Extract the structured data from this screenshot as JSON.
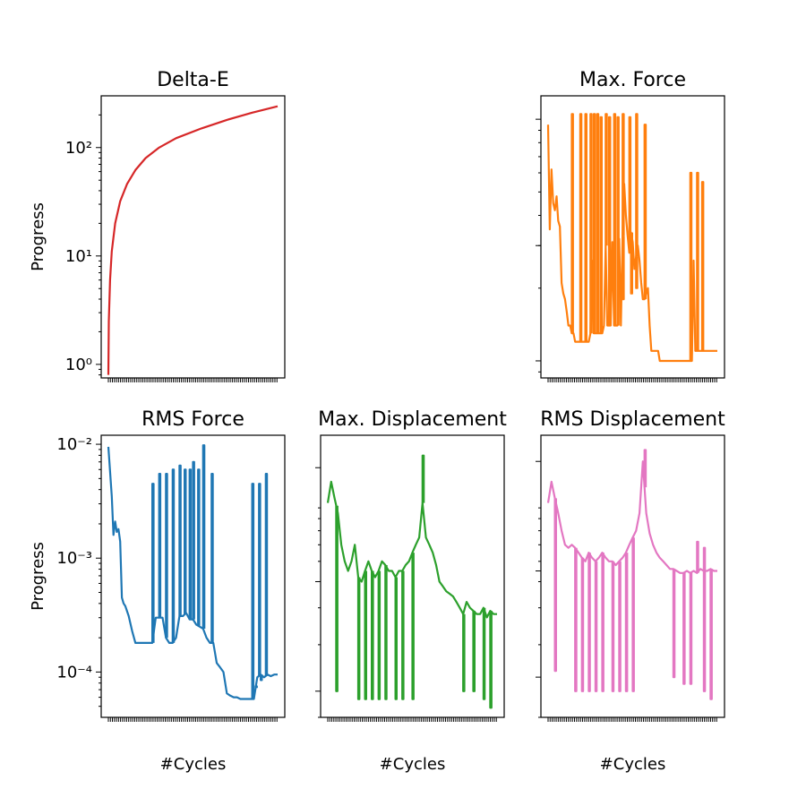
{
  "chart_data": [
    {
      "type": "line",
      "title": "Delta-E",
      "ylabel": "Progress",
      "xlabel": "",
      "yscale": "log",
      "ylim": [
        0.75,
        300
      ],
      "ytick_values": [
        1,
        10,
        100
      ],
      "ytick_labels": [
        "10⁰",
        "10¹",
        "10²"
      ],
      "color": "#d62728",
      "x": [
        0,
        0.25,
        1,
        2,
        4,
        7,
        11,
        16,
        22,
        30,
        40,
        55,
        70,
        85,
        100
      ],
      "y": [
        0.8,
        2.5,
        6,
        11,
        20,
        32,
        46,
        62,
        80,
        100,
        122,
        150,
        180,
        210,
        240
      ]
    },
    {
      "type": "line",
      "title": "Max. Force",
      "ylabel": "",
      "xlabel": "",
      "yscale": "log",
      "ylim": [
        0.00085,
        0.0125
      ],
      "ytick_values": [
        0.001,
        0.003,
        0.01
      ],
      "ytick_labels": [
        "",
        "",
        ""
      ],
      "color": "#ff7f0e",
      "x": [
        0,
        1,
        2,
        3,
        4,
        5,
        6,
        7,
        8,
        9,
        10,
        11,
        12,
        13,
        14,
        15,
        16,
        17,
        18,
        19,
        20,
        21,
        22,
        23,
        24,
        25,
        26,
        27,
        28,
        29,
        30,
        31,
        32,
        33,
        34,
        35,
        36,
        37,
        38,
        39,
        40,
        41,
        42,
        43,
        44,
        45,
        46,
        47,
        48,
        49,
        50,
        51,
        52,
        53,
        54,
        55,
        56,
        57,
        58,
        59,
        60,
        61,
        62,
        63,
        64,
        65,
        66,
        67,
        68,
        69,
        70,
        71,
        72,
        73,
        74,
        75,
        76,
        77,
        78,
        79,
        80,
        81,
        82,
        83,
        84,
        85,
        86,
        87,
        88,
        89,
        90,
        91,
        92,
        93,
        94,
        95,
        96,
        97,
        98,
        99,
        100
      ],
      "y": [
        0.0095,
        0.0035,
        0.0062,
        0.0045,
        0.0042,
        0.0048,
        0.0038,
        0.0036,
        0.0021,
        0.0019,
        0.0018,
        0.0016,
        0.0014,
        0.0014,
        0.0013,
        0.0013,
        0.0012,
        0.0012,
        0.0012,
        0.0012,
        0.0012,
        0.0012,
        0.0012,
        0.0012,
        0.0012,
        0.0013,
        0.0026,
        0.0013,
        0.0013,
        0.0013,
        0.0013,
        0.0013,
        0.0013,
        0.0014,
        0.003,
        0.0014,
        0.0014,
        0.0014,
        0.0031,
        0.0014,
        0.0014,
        0.0014,
        0.0032,
        0.0014,
        0.0033,
        0.0054,
        0.004,
        0.0033,
        0.0028,
        0.0034,
        0.0031,
        0.0024,
        0.0027,
        0.003,
        0.0026,
        0.0021,
        0.0018,
        0.0018,
        0.0019,
        0.002,
        0.0014,
        0.0011,
        0.0011,
        0.0011,
        0.0011,
        0.0011,
        0.001,
        0.001,
        0.001,
        0.001,
        0.001,
        0.001,
        0.001,
        0.001,
        0.001,
        0.001,
        0.001,
        0.001,
        0.001,
        0.001,
        0.001,
        0.001,
        0.001,
        0.001,
        0.001,
        0.001,
        0.0026,
        0.0011,
        0.0011,
        0.0011,
        0.0011,
        0.0011,
        0.0011,
        0.0011,
        0.0011,
        0.0011,
        0.0011,
        0.0011,
        0.0011,
        0.0011,
        0.0011
      ],
      "spikes": [
        [
          14,
          0.0105
        ],
        [
          19,
          0.0105
        ],
        [
          22,
          0.0105
        ],
        [
          25,
          0.0105
        ],
        [
          27,
          0.0105
        ],
        [
          29,
          0.0105
        ],
        [
          31,
          0.0102
        ],
        [
          34,
          0.0105
        ],
        [
          36,
          0.0102
        ],
        [
          39,
          0.0105
        ],
        [
          41,
          0.0102
        ],
        [
          44,
          0.0105
        ],
        [
          48,
          0.0102
        ],
        [
          52,
          0.0105
        ],
        [
          57,
          0.0095
        ],
        [
          84,
          0.006
        ],
        [
          88,
          0.006
        ],
        [
          91,
          0.0055
        ]
      ],
      "dips": [
        [
          44,
          0.0018
        ],
        [
          49,
          0.0019
        ],
        [
          52,
          0.002
        ]
      ]
    },
    {
      "type": "line",
      "title": "RMS Force",
      "ylabel": "Progress",
      "xlabel": "#Cycles",
      "yscale": "log",
      "ylim": [
        4e-05,
        0.012
      ],
      "ytick_values": [
        0.0001,
        0.001,
        0.01
      ],
      "ytick_labels": [
        "10⁻⁴",
        "10⁻³",
        "10⁻²"
      ],
      "color": "#1f77b4",
      "x": [
        0,
        2,
        3,
        4,
        5,
        6,
        7,
        8,
        9,
        10,
        12,
        14,
        16,
        18,
        20,
        22,
        24,
        26,
        28,
        30,
        32,
        34,
        36,
        38,
        40,
        42,
        44,
        46,
        48,
        50,
        52,
        54,
        56,
        58,
        60,
        62,
        64,
        66,
        68,
        70,
        72,
        74,
        76,
        78,
        80,
        82,
        84,
        86,
        88,
        90,
        92,
        94,
        96,
        98,
        100
      ],
      "y": [
        0.0095,
        0.0035,
        0.0016,
        0.0021,
        0.0017,
        0.0018,
        0.0014,
        0.00045,
        0.0004,
        0.00038,
        0.00031,
        0.00023,
        0.00018,
        0.00018,
        0.00018,
        0.00018,
        0.00018,
        0.00018,
        0.0003,
        0.0003,
        0.0003,
        0.0002,
        0.00018,
        0.00018,
        0.0002,
        0.00031,
        0.00031,
        0.00033,
        0.00029,
        0.00029,
        0.00026,
        0.00025,
        0.00024,
        0.0002,
        0.00018,
        0.00018,
        0.00012,
        0.00011,
        0.0001,
        6.5e-05,
        6.2e-05,
        6e-05,
        6e-05,
        5.8e-05,
        5.8e-05,
        5.8e-05,
        5.8e-05,
        5.8e-05,
        9e-05,
        9.5e-05,
        9e-05,
        9.5e-05,
        9.2e-05,
        9.5e-05,
        9.5e-05
      ],
      "spikes": [
        [
          26,
          0.0045
        ],
        [
          30,
          0.0055
        ],
        [
          34,
          0.0055
        ],
        [
          38,
          0.006
        ],
        [
          42,
          0.0065
        ],
        [
          45,
          0.006
        ],
        [
          48,
          0.006
        ],
        [
          50,
          0.007
        ],
        [
          53,
          0.006
        ],
        [
          56,
          0.0098
        ],
        [
          61,
          0.0055
        ],
        [
          85,
          0.0045
        ],
        [
          89,
          0.0045
        ],
        [
          93,
          0.0055
        ]
      ],
      "dips": [
        [
          87,
          7.5e-05
        ],
        [
          90,
          8.5e-05
        ]
      ]
    },
    {
      "type": "line",
      "title": "Max. Displacement",
      "ylabel": "",
      "xlabel": "#Cycles",
      "yscale": "log",
      "ylim": [
        0.0009,
        0.02
      ],
      "ytick_values": [
        0.0012,
        0.004,
        0.014
      ],
      "ytick_labels": [
        "",
        "",
        ""
      ],
      "color": "#2ca02c",
      "x": [
        0,
        2,
        4,
        6,
        8,
        10,
        12,
        14,
        16,
        18,
        20,
        22,
        24,
        26,
        28,
        30,
        32,
        34,
        36,
        38,
        40,
        42,
        44,
        46,
        48,
        50,
        52,
        54,
        56,
        58,
        60,
        62,
        64,
        66,
        68,
        70,
        72,
        74,
        76,
        78,
        80,
        82,
        84,
        86,
        88,
        90,
        92,
        94,
        96,
        98,
        100
      ],
      "y": [
        0.0095,
        0.012,
        0.01,
        0.0085,
        0.006,
        0.005,
        0.0045,
        0.005,
        0.006,
        0.0042,
        0.004,
        0.0045,
        0.005,
        0.0045,
        0.0042,
        0.0045,
        0.005,
        0.0048,
        0.0045,
        0.0045,
        0.0042,
        0.0045,
        0.0045,
        0.0048,
        0.005,
        0.0055,
        0.006,
        0.0065,
        0.0095,
        0.0065,
        0.006,
        0.0055,
        0.0048,
        0.004,
        0.0038,
        0.0036,
        0.0035,
        0.0034,
        0.0032,
        0.003,
        0.0028,
        0.0032,
        0.003,
        0.0029,
        0.0028,
        0.0028,
        0.003,
        0.0027,
        0.0029,
        0.0028,
        0.0028
      ],
      "spikes": [
        [
          56,
          0.016
        ]
      ],
      "dips": [
        [
          5,
          0.0012
        ],
        [
          18,
          0.0011
        ],
        [
          22,
          0.0011
        ],
        [
          26,
          0.0011
        ],
        [
          30,
          0.0011
        ],
        [
          34,
          0.0011
        ],
        [
          40,
          0.0011
        ],
        [
          44,
          0.0011
        ],
        [
          50,
          0.0011
        ],
        [
          80,
          0.0012
        ],
        [
          86,
          0.0012
        ],
        [
          92,
          0.0011
        ],
        [
          96,
          0.001
        ]
      ]
    },
    {
      "type": "line",
      "title": "RMS Displacement",
      "ylabel": "",
      "xlabel": "#Cycles",
      "yscale": "log",
      "ylim": [
        0.0009,
        0.02
      ],
      "ytick_values": [
        0.0014,
        0.0045,
        0.015
      ],
      "ytick_labels": [
        "",
        "",
        ""
      ],
      "color": "#e377c2",
      "x": [
        0,
        2,
        4,
        6,
        8,
        10,
        12,
        14,
        16,
        18,
        20,
        22,
        24,
        26,
        28,
        30,
        32,
        34,
        36,
        38,
        40,
        42,
        44,
        46,
        48,
        50,
        52,
        54,
        56,
        58,
        60,
        62,
        64,
        66,
        68,
        70,
        72,
        74,
        76,
        78,
        80,
        82,
        84,
        86,
        88,
        90,
        92,
        94,
        96,
        98,
        100
      ],
      "y": [
        0.0095,
        0.012,
        0.01,
        0.0085,
        0.007,
        0.006,
        0.0058,
        0.006,
        0.0058,
        0.0055,
        0.0052,
        0.005,
        0.0055,
        0.0052,
        0.005,
        0.0052,
        0.0055,
        0.0052,
        0.005,
        0.005,
        0.0048,
        0.005,
        0.0052,
        0.0055,
        0.006,
        0.0065,
        0.007,
        0.0085,
        0.015,
        0.0085,
        0.0068,
        0.006,
        0.0055,
        0.0052,
        0.005,
        0.0048,
        0.0046,
        0.0046,
        0.0045,
        0.0044,
        0.0044,
        0.0045,
        0.0044,
        0.0045,
        0.0044,
        0.0046,
        0.0045,
        0.0045,
        0.0046,
        0.0045,
        0.0045
      ],
      "spikes": [
        [
          57,
          0.017
        ],
        [
          88,
          0.0062
        ],
        [
          92,
          0.0058
        ]
      ],
      "dips": [
        [
          4,
          0.0015
        ],
        [
          16,
          0.0012
        ],
        [
          20,
          0.0012
        ],
        [
          24,
          0.0012
        ],
        [
          28,
          0.0012
        ],
        [
          32,
          0.0012
        ],
        [
          38,
          0.0012
        ],
        [
          42,
          0.0012
        ],
        [
          46,
          0.0012
        ],
        [
          50,
          0.0012
        ],
        [
          74,
          0.0014
        ],
        [
          80,
          0.0013
        ],
        [
          84,
          0.0013
        ],
        [
          92,
          0.0012
        ],
        [
          96,
          0.0011
        ]
      ]
    }
  ]
}
